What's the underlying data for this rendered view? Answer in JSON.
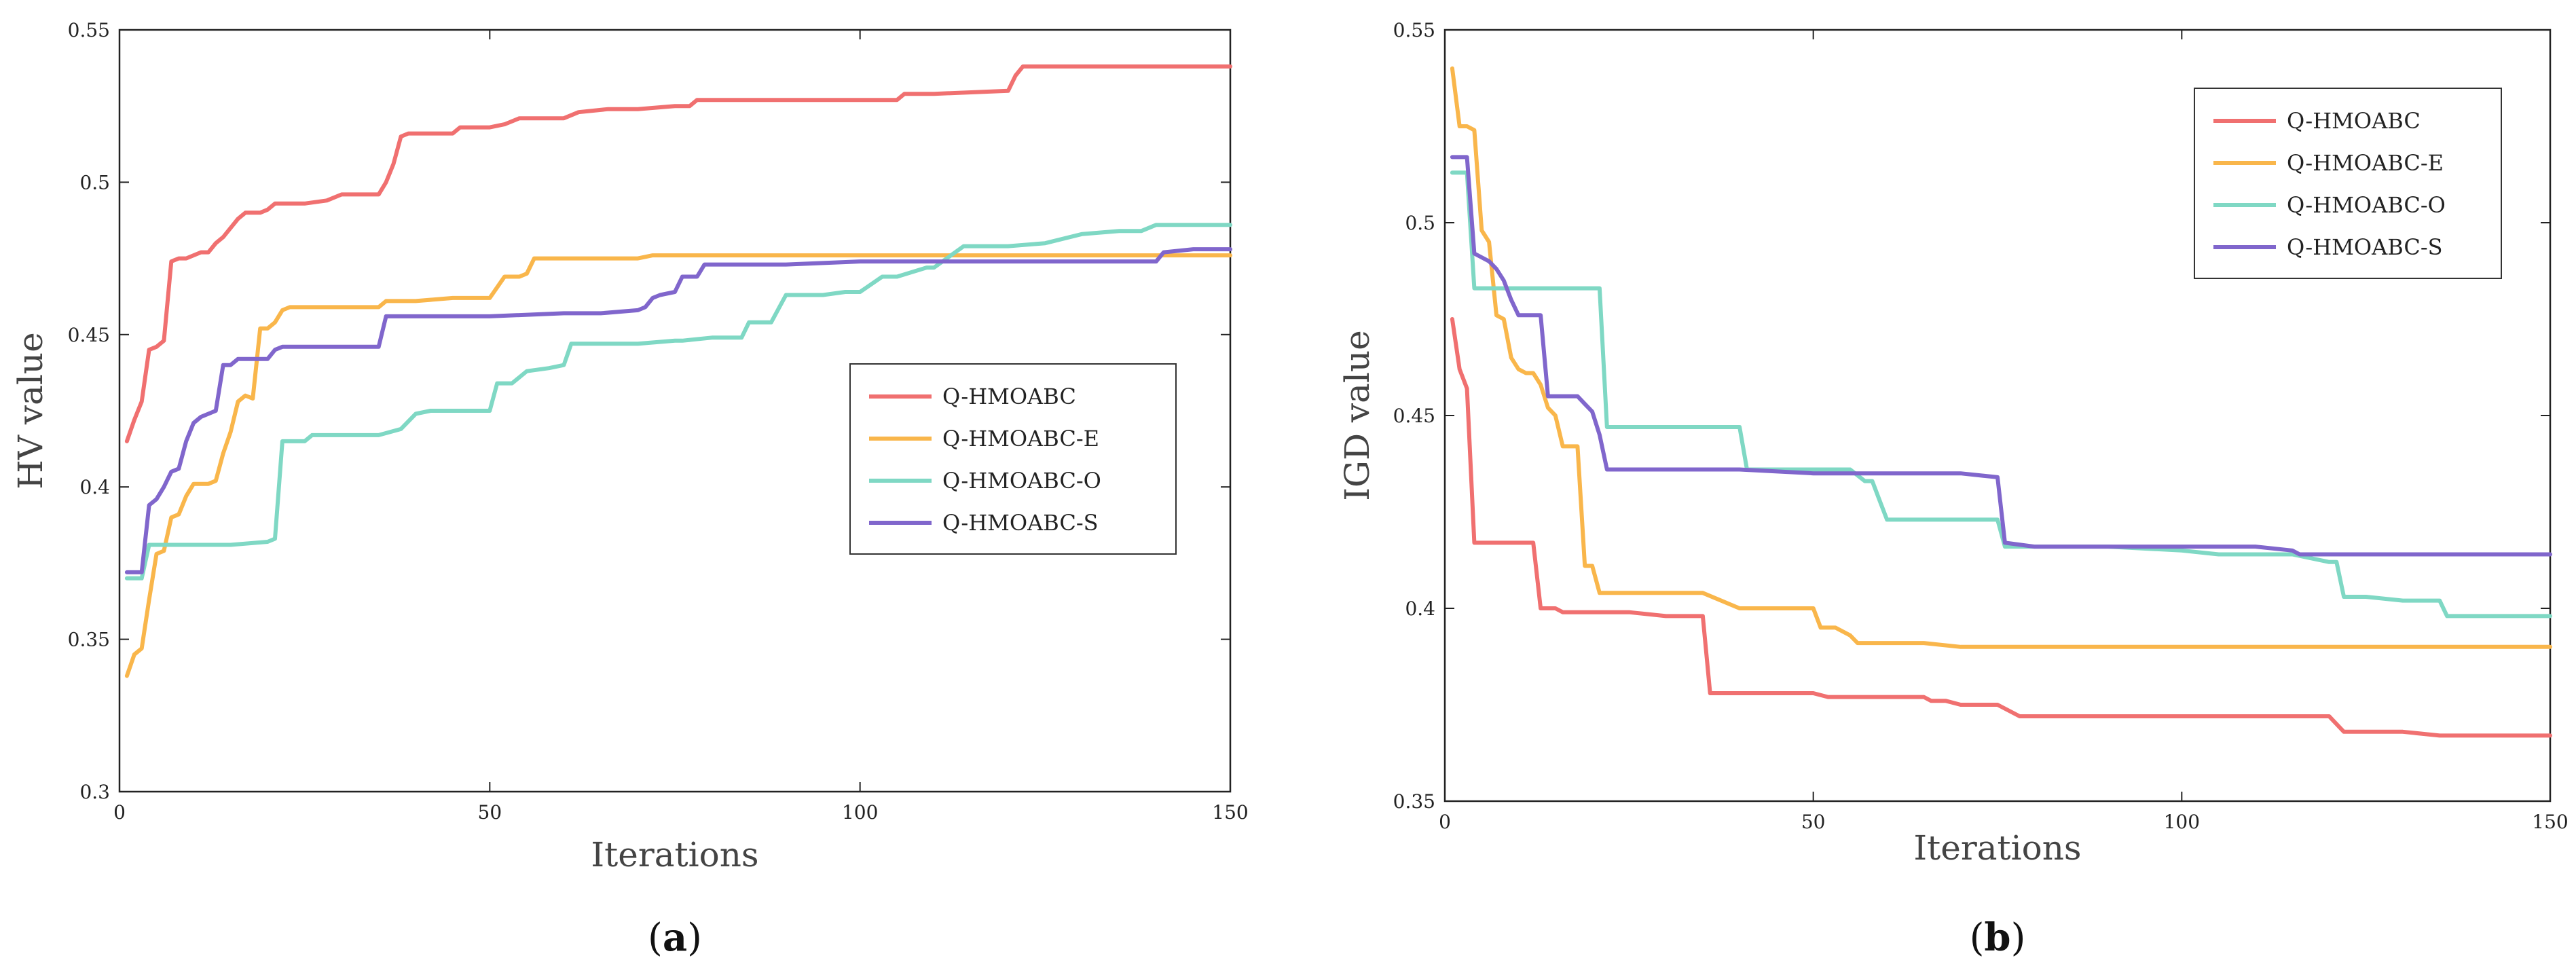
{
  "colors": {
    "Q-HMOABC": "#f07070",
    "Q-HMOABC-E": "#f9b64b",
    "Q-HMOABC-O": "#7fd8c4",
    "Q-HMOABC-S": "#8066cc"
  },
  "chart_data": [
    {
      "type": "line",
      "caption_letter": "a",
      "xlabel": "Iterations",
      "ylabel": "HV value",
      "xlim": [
        0,
        150
      ],
      "ylim": [
        0.3,
        0.55
      ],
      "xticks": [
        0,
        50,
        100,
        150
      ],
      "yticks": [
        0.3,
        0.35,
        0.4,
        0.45,
        0.5,
        0.55
      ],
      "ytick_labels": [
        "0.3",
        "0.35",
        "0.4",
        "0.45",
        "0.5",
        "0.55"
      ],
      "legend_position": "center-right",
      "series": [
        {
          "name": "Q-HMOABC",
          "x": [
            1,
            2,
            3,
            4,
            5,
            6,
            7,
            8,
            9,
            10,
            11,
            12,
            13,
            14,
            15,
            16,
            17,
            18,
            19,
            20,
            21,
            22,
            25,
            28,
            30,
            32,
            35,
            36,
            37,
            38,
            39,
            40,
            45,
            46,
            50,
            52,
            54,
            60,
            62,
            66,
            70,
            75,
            77,
            78,
            80,
            90,
            100,
            105,
            106,
            110,
            120,
            121,
            122,
            130,
            140,
            150
          ],
          "y": [
            0.415,
            0.422,
            0.428,
            0.445,
            0.446,
            0.448,
            0.474,
            0.475,
            0.475,
            0.476,
            0.477,
            0.477,
            0.48,
            0.482,
            0.485,
            0.488,
            0.49,
            0.49,
            0.49,
            0.491,
            0.493,
            0.493,
            0.493,
            0.494,
            0.496,
            0.496,
            0.496,
            0.5,
            0.506,
            0.515,
            0.516,
            0.516,
            0.516,
            0.518,
            0.518,
            0.519,
            0.521,
            0.521,
            0.523,
            0.524,
            0.524,
            0.525,
            0.525,
            0.527,
            0.527,
            0.527,
            0.527,
            0.527,
            0.529,
            0.529,
            0.53,
            0.535,
            0.538,
            0.538,
            0.538,
            0.538
          ]
        },
        {
          "name": "Q-HMOABC-E",
          "x": [
            1,
            2,
            3,
            4,
            5,
            6,
            7,
            8,
            9,
            10,
            11,
            12,
            13,
            14,
            15,
            16,
            17,
            18,
            19,
            20,
            21,
            22,
            23,
            25,
            30,
            35,
            36,
            40,
            45,
            50,
            52,
            54,
            55,
            56,
            60,
            70,
            72,
            75,
            80,
            90,
            100,
            110,
            120,
            130,
            140,
            150
          ],
          "y": [
            0.338,
            0.345,
            0.347,
            0.363,
            0.378,
            0.379,
            0.39,
            0.391,
            0.397,
            0.401,
            0.401,
            0.401,
            0.402,
            0.411,
            0.418,
            0.428,
            0.43,
            0.429,
            0.452,
            0.452,
            0.454,
            0.458,
            0.459,
            0.459,
            0.459,
            0.459,
            0.461,
            0.461,
            0.462,
            0.462,
            0.469,
            0.469,
            0.47,
            0.475,
            0.475,
            0.475,
            0.476,
            0.476,
            0.476,
            0.476,
            0.476,
            0.476,
            0.476,
            0.476,
            0.476,
            0.476
          ]
        },
        {
          "name": "Q-HMOABC-O",
          "x": [
            1,
            2,
            3,
            4,
            5,
            10,
            15,
            20,
            21,
            22,
            25,
            26,
            30,
            35,
            38,
            40,
            42,
            45,
            50,
            51,
            53,
            55,
            58,
            60,
            61,
            65,
            70,
            75,
            76,
            80,
            84,
            85,
            88,
            90,
            95,
            98,
            100,
            103,
            105,
            109,
            110,
            114,
            120,
            125,
            130,
            135,
            138,
            140,
            150
          ],
          "y": [
            0.37,
            0.37,
            0.37,
            0.381,
            0.381,
            0.381,
            0.381,
            0.382,
            0.383,
            0.415,
            0.415,
            0.417,
            0.417,
            0.417,
            0.419,
            0.424,
            0.425,
            0.425,
            0.425,
            0.434,
            0.434,
            0.438,
            0.439,
            0.44,
            0.447,
            0.447,
            0.447,
            0.448,
            0.448,
            0.449,
            0.449,
            0.454,
            0.454,
            0.463,
            0.463,
            0.464,
            0.464,
            0.469,
            0.469,
            0.472,
            0.472,
            0.479,
            0.479,
            0.48,
            0.483,
            0.484,
            0.484,
            0.486,
            0.486
          ]
        },
        {
          "name": "Q-HMOABC-S",
          "x": [
            1,
            2,
            3,
            4,
            5,
            6,
            7,
            8,
            9,
            10,
            11,
            12,
            13,
            14,
            15,
            16,
            18,
            20,
            21,
            22,
            23,
            25,
            30,
            35,
            36,
            40,
            50,
            60,
            65,
            70,
            71,
            72,
            73,
            75,
            76,
            78,
            79,
            80,
            90,
            100,
            110,
            120,
            130,
            140,
            141,
            145,
            150
          ],
          "y": [
            0.372,
            0.372,
            0.372,
            0.394,
            0.396,
            0.4,
            0.405,
            0.406,
            0.415,
            0.421,
            0.423,
            0.424,
            0.425,
            0.44,
            0.44,
            0.442,
            0.442,
            0.442,
            0.445,
            0.446,
            0.446,
            0.446,
            0.446,
            0.446,
            0.456,
            0.456,
            0.456,
            0.457,
            0.457,
            0.458,
            0.459,
            0.462,
            0.463,
            0.464,
            0.469,
            0.469,
            0.473,
            0.473,
            0.473,
            0.474,
            0.474,
            0.474,
            0.474,
            0.474,
            0.477,
            0.478,
            0.478
          ]
        }
      ]
    },
    {
      "type": "line",
      "caption_letter": "b",
      "xlabel": "Iterations",
      "ylabel": "IGD value",
      "xlim": [
        0,
        150
      ],
      "ylim": [
        0.35,
        0.55
      ],
      "xticks": [
        0,
        50,
        100,
        150
      ],
      "yticks": [
        0.35,
        0.4,
        0.45,
        0.5,
        0.55
      ],
      "ytick_labels": [
        "0.35",
        "0.4",
        "0.45",
        "0.5",
        "0.55"
      ],
      "legend_position": "top-right",
      "series": [
        {
          "name": "Q-HMOABC",
          "x": [
            1,
            2,
            3,
            4,
            5,
            6,
            7,
            8,
            9,
            10,
            11,
            12,
            13,
            14,
            15,
            16,
            17,
            18,
            20,
            25,
            30,
            35,
            36,
            40,
            45,
            50,
            52,
            55,
            60,
            65,
            66,
            68,
            70,
            75,
            78,
            80,
            90,
            100,
            110,
            120,
            122,
            125,
            130,
            135,
            140,
            150
          ],
          "y": [
            0.475,
            0.462,
            0.457,
            0.417,
            0.417,
            0.417,
            0.417,
            0.417,
            0.417,
            0.417,
            0.417,
            0.417,
            0.4,
            0.4,
            0.4,
            0.399,
            0.399,
            0.399,
            0.399,
            0.399,
            0.398,
            0.398,
            0.378,
            0.378,
            0.378,
            0.378,
            0.377,
            0.377,
            0.377,
            0.377,
            0.376,
            0.376,
            0.375,
            0.375,
            0.372,
            0.372,
            0.372,
            0.372,
            0.372,
            0.372,
            0.368,
            0.368,
            0.368,
            0.367,
            0.367,
            0.367
          ]
        },
        {
          "name": "Q-HMOABC-E",
          "x": [
            1,
            2,
            3,
            4,
            5,
            6,
            7,
            8,
            9,
            10,
            11,
            12,
            13,
            14,
            15,
            16,
            17,
            18,
            19,
            20,
            21,
            22,
            25,
            30,
            35,
            40,
            45,
            50,
            51,
            53,
            55,
            56,
            57,
            60,
            65,
            70,
            75,
            80,
            90,
            100,
            110,
            120,
            130,
            140,
            150
          ],
          "y": [
            0.54,
            0.525,
            0.525,
            0.524,
            0.498,
            0.495,
            0.476,
            0.475,
            0.465,
            0.462,
            0.461,
            0.461,
            0.458,
            0.452,
            0.45,
            0.442,
            0.442,
            0.442,
            0.411,
            0.411,
            0.404,
            0.404,
            0.404,
            0.404,
            0.404,
            0.4,
            0.4,
            0.4,
            0.395,
            0.395,
            0.393,
            0.391,
            0.391,
            0.391,
            0.391,
            0.39,
            0.39,
            0.39,
            0.39,
            0.39,
            0.39,
            0.39,
            0.39,
            0.39,
            0.39
          ]
        },
        {
          "name": "Q-HMOABC-O",
          "x": [
            1,
            2,
            3,
            4,
            5,
            10,
            15,
            20,
            21,
            22,
            25,
            30,
            35,
            40,
            41,
            45,
            50,
            55,
            57,
            58,
            59,
            60,
            65,
            70,
            75,
            76,
            80,
            90,
            100,
            105,
            110,
            115,
            120,
            121,
            122,
            125,
            130,
            135,
            136,
            140,
            145,
            150
          ],
          "y": [
            0.513,
            0.513,
            0.513,
            0.483,
            0.483,
            0.483,
            0.483,
            0.483,
            0.483,
            0.447,
            0.447,
            0.447,
            0.447,
            0.447,
            0.436,
            0.436,
            0.436,
            0.436,
            0.433,
            0.433,
            0.428,
            0.423,
            0.423,
            0.423,
            0.423,
            0.416,
            0.416,
            0.416,
            0.415,
            0.414,
            0.414,
            0.414,
            0.412,
            0.412,
            0.403,
            0.403,
            0.402,
            0.402,
            0.398,
            0.398,
            0.398,
            0.398
          ]
        },
        {
          "name": "Q-HMOABC-S",
          "x": [
            1,
            2,
            3,
            4,
            5,
            6,
            7,
            8,
            9,
            10,
            11,
            12,
            13,
            14,
            15,
            16,
            17,
            18,
            19,
            20,
            21,
            22,
            25,
            30,
            40,
            50,
            55,
            60,
            65,
            70,
            75,
            76,
            80,
            90,
            100,
            110,
            115,
            116,
            120,
            130,
            140,
            150
          ],
          "y": [
            0.517,
            0.517,
            0.517,
            0.492,
            0.491,
            0.49,
            0.488,
            0.485,
            0.48,
            0.476,
            0.476,
            0.476,
            0.476,
            0.455,
            0.455,
            0.455,
            0.455,
            0.455,
            0.453,
            0.451,
            0.445,
            0.436,
            0.436,
            0.436,
            0.436,
            0.435,
            0.435,
            0.435,
            0.435,
            0.435,
            0.434,
            0.417,
            0.416,
            0.416,
            0.416,
            0.416,
            0.415,
            0.414,
            0.414,
            0.414,
            0.414,
            0.414
          ]
        }
      ]
    }
  ]
}
